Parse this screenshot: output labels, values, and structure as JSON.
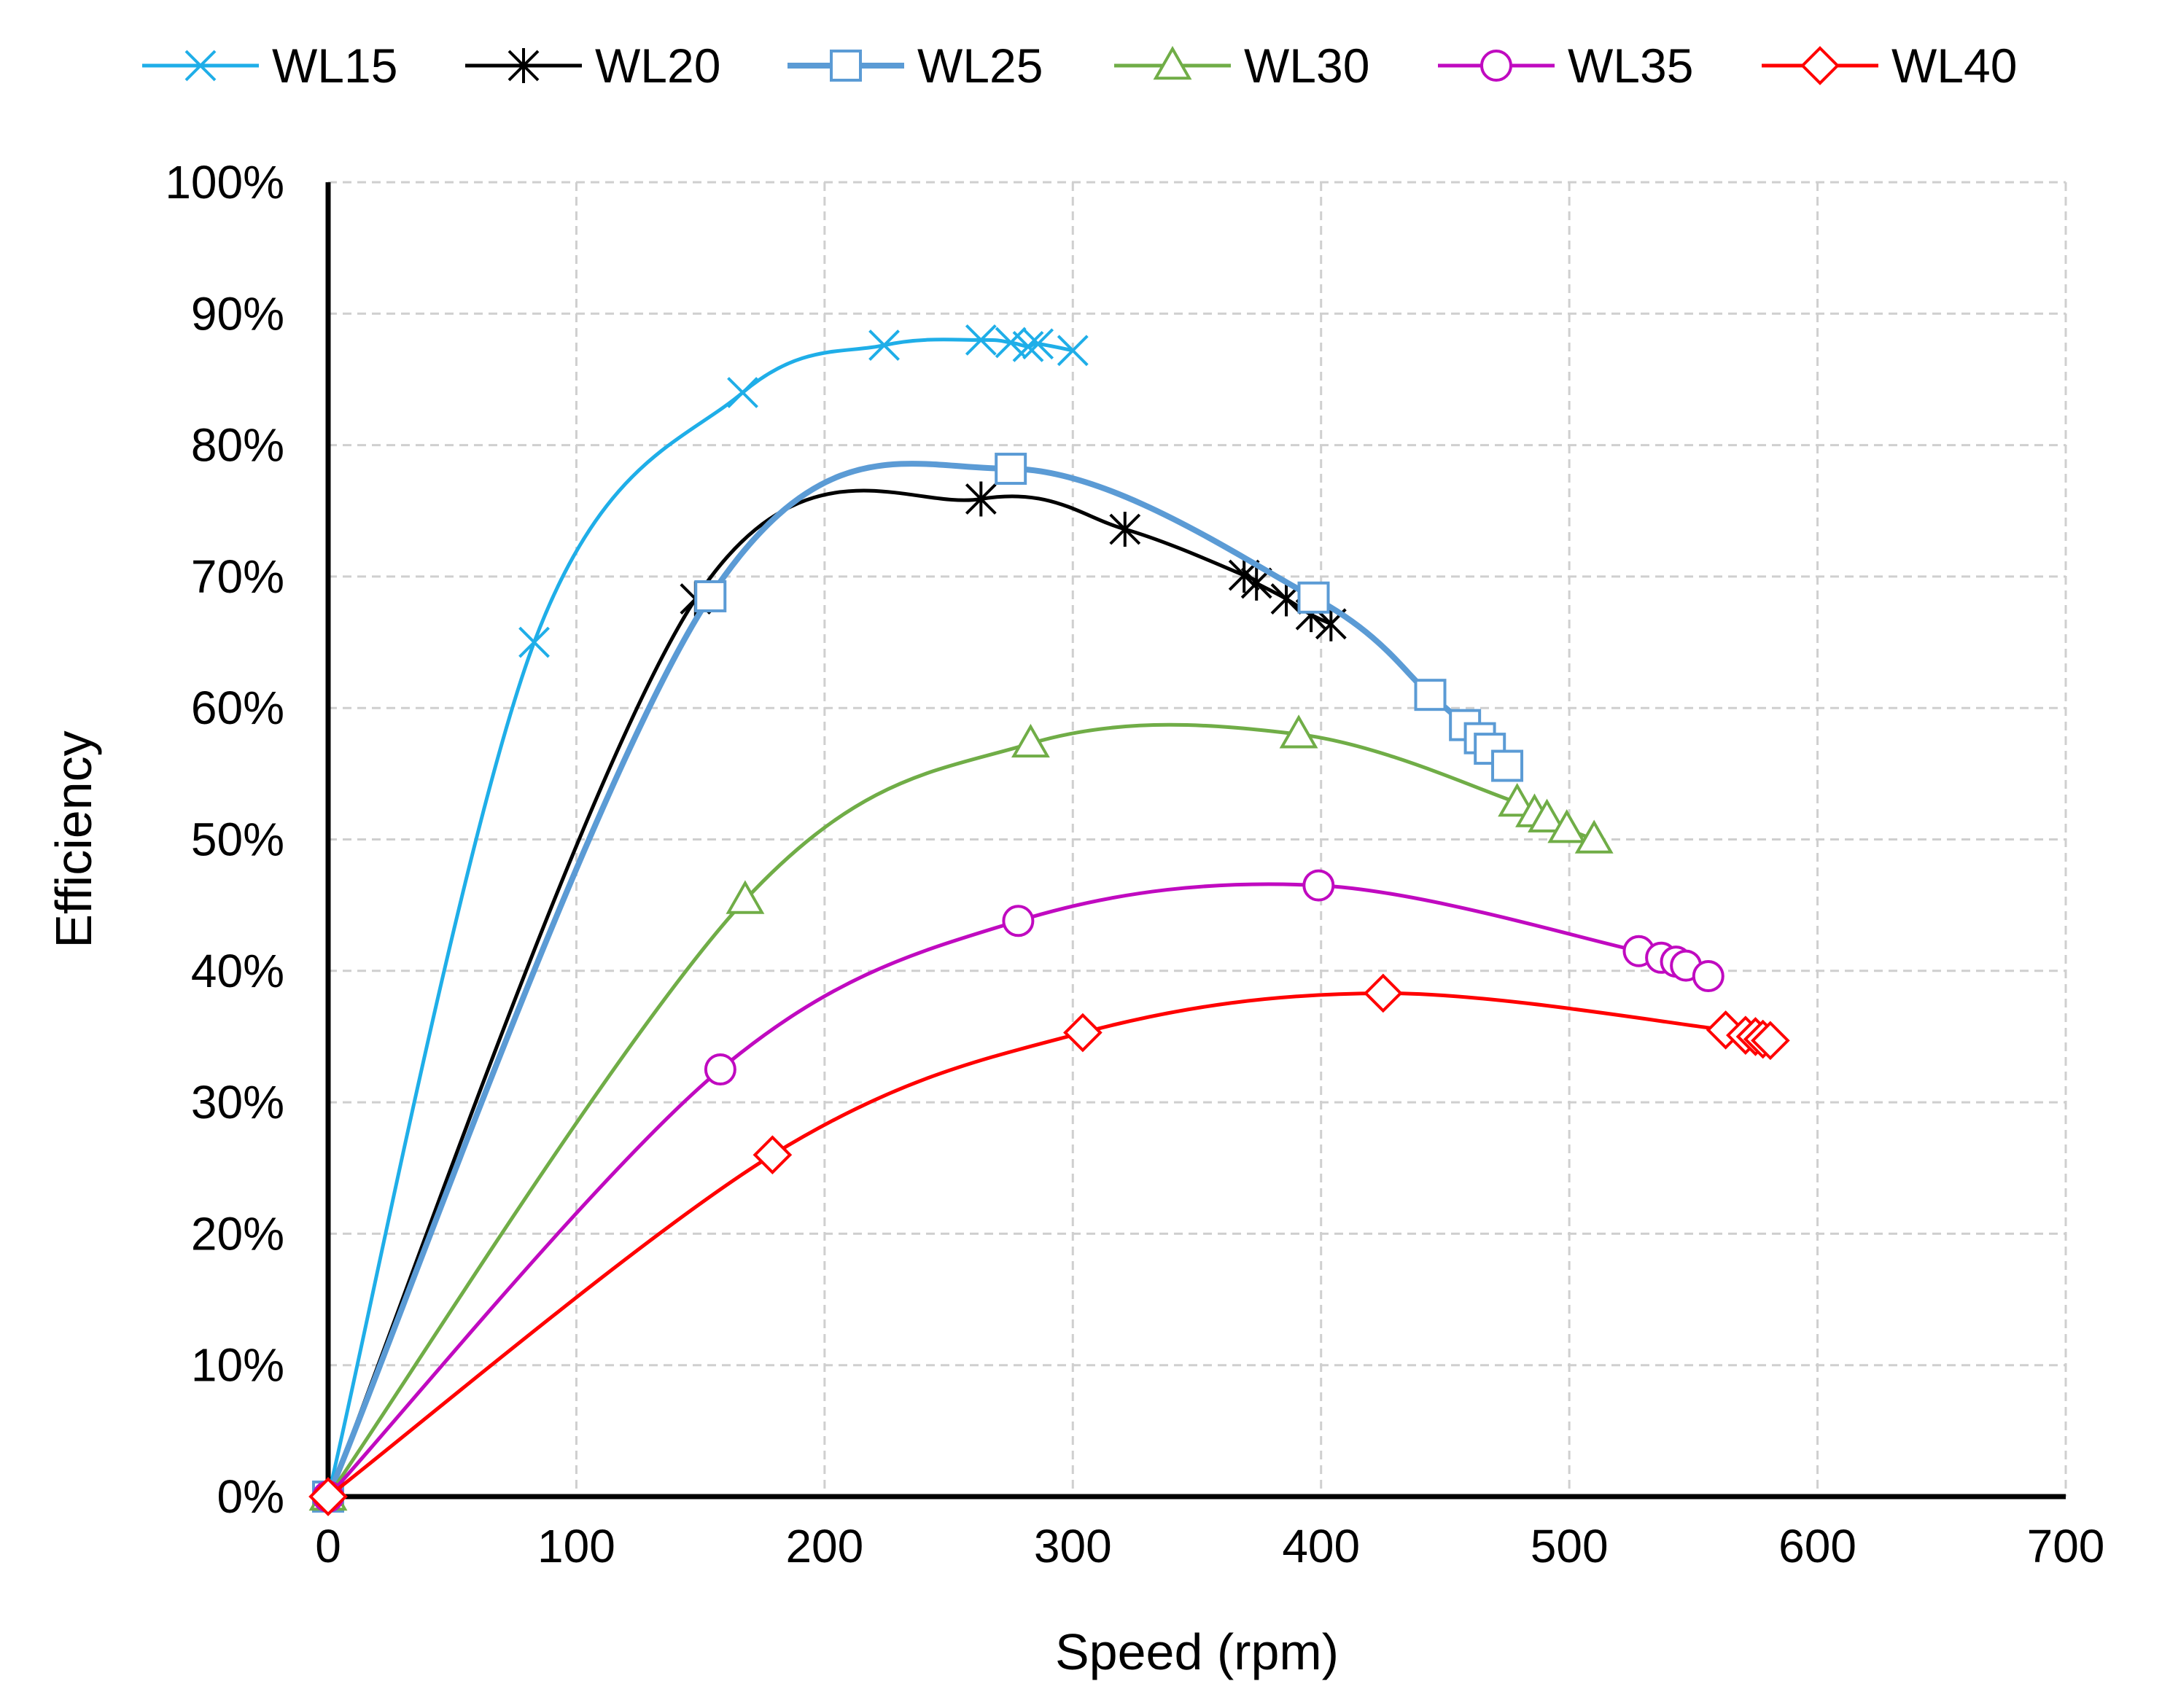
{
  "chart_data": {
    "type": "line",
    "title": "",
    "xlabel": "Speed (rpm)",
    "ylabel": "Efficiency",
    "xlim": [
      0,
      700
    ],
    "ylim": [
      0,
      1
    ],
    "x_ticks": [
      "0",
      "100",
      "200",
      "300",
      "400",
      "500",
      "600",
      "700"
    ],
    "y_ticks": [
      "0%",
      "10%",
      "20%",
      "30%",
      "40%",
      "50%",
      "60%",
      "70%",
      "80%",
      "90%",
      "100%"
    ],
    "grid": true,
    "legend_position": "top",
    "series": [
      {
        "name": "WL15",
        "color": "#1FAEE8",
        "marker": "x",
        "points": [
          [
            0,
            0
          ],
          [
            83,
            0.65
          ],
          [
            167,
            0.84
          ],
          [
            224,
            0.876
          ],
          [
            263,
            0.88
          ],
          [
            275,
            0.878
          ],
          [
            282,
            0.875
          ],
          [
            286,
            0.877
          ],
          [
            300,
            0.872
          ]
        ]
      },
      {
        "name": "WL20",
        "color": "#000000",
        "marker": "star",
        "points": [
          [
            0,
            0
          ],
          [
            148,
            0.683
          ],
          [
            263,
            0.759
          ],
          [
            321,
            0.736
          ],
          [
            369,
            0.701
          ],
          [
            374,
            0.695
          ],
          [
            386,
            0.683
          ],
          [
            396,
            0.671
          ],
          [
            404,
            0.664
          ]
        ]
      },
      {
        "name": "WL25",
        "color": "#5B9BD5",
        "marker": "square",
        "points": [
          [
            0,
            0
          ],
          [
            154,
            0.685
          ],
          [
            275,
            0.782
          ],
          [
            397,
            0.684
          ],
          [
            444,
            0.61
          ],
          [
            458,
            0.587
          ],
          [
            464,
            0.577
          ],
          [
            468,
            0.569
          ],
          [
            475,
            0.556
          ]
        ]
      },
      {
        "name": "WL30",
        "color": "#70AD47",
        "marker": "triangle",
        "points": [
          [
            0,
            0
          ],
          [
            168,
            0.454
          ],
          [
            283,
            0.573
          ],
          [
            391,
            0.58
          ],
          [
            479,
            0.528
          ],
          [
            486,
            0.52
          ],
          [
            491,
            0.516
          ],
          [
            499,
            0.508
          ],
          [
            510,
            0.5
          ]
        ]
      },
      {
        "name": "WL35",
        "color": "#C00AC0",
        "marker": "circle",
        "points": [
          [
            0,
            0
          ],
          [
            158,
            0.325
          ],
          [
            278,
            0.438
          ],
          [
            399,
            0.465
          ],
          [
            528,
            0.415
          ],
          [
            537,
            0.41
          ],
          [
            543,
            0.407
          ],
          [
            547,
            0.404
          ],
          [
            556,
            0.396
          ]
        ]
      },
      {
        "name": "WL40",
        "color": "#FF0000",
        "marker": "diamond",
        "points": [
          [
            0,
            0
          ],
          [
            179,
            0.26
          ],
          [
            304,
            0.353
          ],
          [
            425,
            0.383
          ],
          [
            563,
            0.355
          ],
          [
            571,
            0.351
          ],
          [
            575,
            0.35
          ],
          [
            578,
            0.348
          ],
          [
            581,
            0.347
          ]
        ]
      }
    ]
  }
}
